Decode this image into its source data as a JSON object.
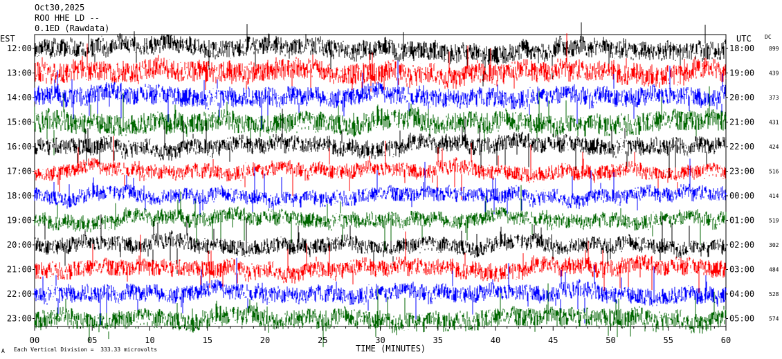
{
  "header": {
    "date": "Oct30,2025",
    "station": "ROO HHE LD --",
    "filter": "0.1ED (Rawdata)"
  },
  "labels": {
    "left_zone": "EST",
    "right_zone": "UTC",
    "dc_header": "DC",
    "xlabel": "TIME (MINUTES)",
    "footer": "Each Vertical Division =  333.33 microvolts",
    "footer_mark": "A"
  },
  "chart_data": {
    "type": "line",
    "title": "Oct30,2025 ROO HHE LD -- 0.1ED (Rawdata)",
    "xlabel": "TIME (MINUTES)",
    "xlim": [
      0,
      60
    ],
    "x_ticks": [
      "00",
      "05",
      "10",
      "15",
      "20",
      "25",
      "30",
      "35",
      "40",
      "45",
      "50",
      "55",
      "60"
    ],
    "rows": [
      {
        "est": "12:00",
        "utc": "18:00",
        "dc": "899",
        "color": "#000000",
        "amp": 0.9
      },
      {
        "est": "13:00",
        "utc": "19:00",
        "dc": "439",
        "color": "#ff0000",
        "amp": 1.0
      },
      {
        "est": "14:00",
        "utc": "20:00",
        "dc": "373",
        "color": "#0000ff",
        "amp": 0.9
      },
      {
        "est": "15:00",
        "utc": "21:00",
        "dc": "431",
        "color": "#006600",
        "amp": 1.0
      },
      {
        "est": "16:00",
        "utc": "22:00",
        "dc": "424",
        "color": "#000000",
        "amp": 0.8
      },
      {
        "est": "17:00",
        "utc": "23:00",
        "dc": "516",
        "color": "#ff0000",
        "amp": 0.7
      },
      {
        "est": "18:00",
        "utc": "00:00",
        "dc": "414",
        "color": "#0000ff",
        "amp": 0.7
      },
      {
        "est": "19:00",
        "utc": "01:00",
        "dc": "519",
        "color": "#006600",
        "amp": 0.7
      },
      {
        "est": "20:00",
        "utc": "02:00",
        "dc": "302",
        "color": "#000000",
        "amp": 0.75
      },
      {
        "est": "21:00",
        "utc": "03:00",
        "dc": "484",
        "color": "#ff0000",
        "amp": 0.8
      },
      {
        "est": "22:00",
        "utc": "04:00",
        "dc": "528",
        "color": "#0000ff",
        "amp": 0.8
      },
      {
        "est": "23:00",
        "utc": "05:00",
        "dc": "574",
        "color": "#006600",
        "amp": 0.9
      }
    ]
  }
}
